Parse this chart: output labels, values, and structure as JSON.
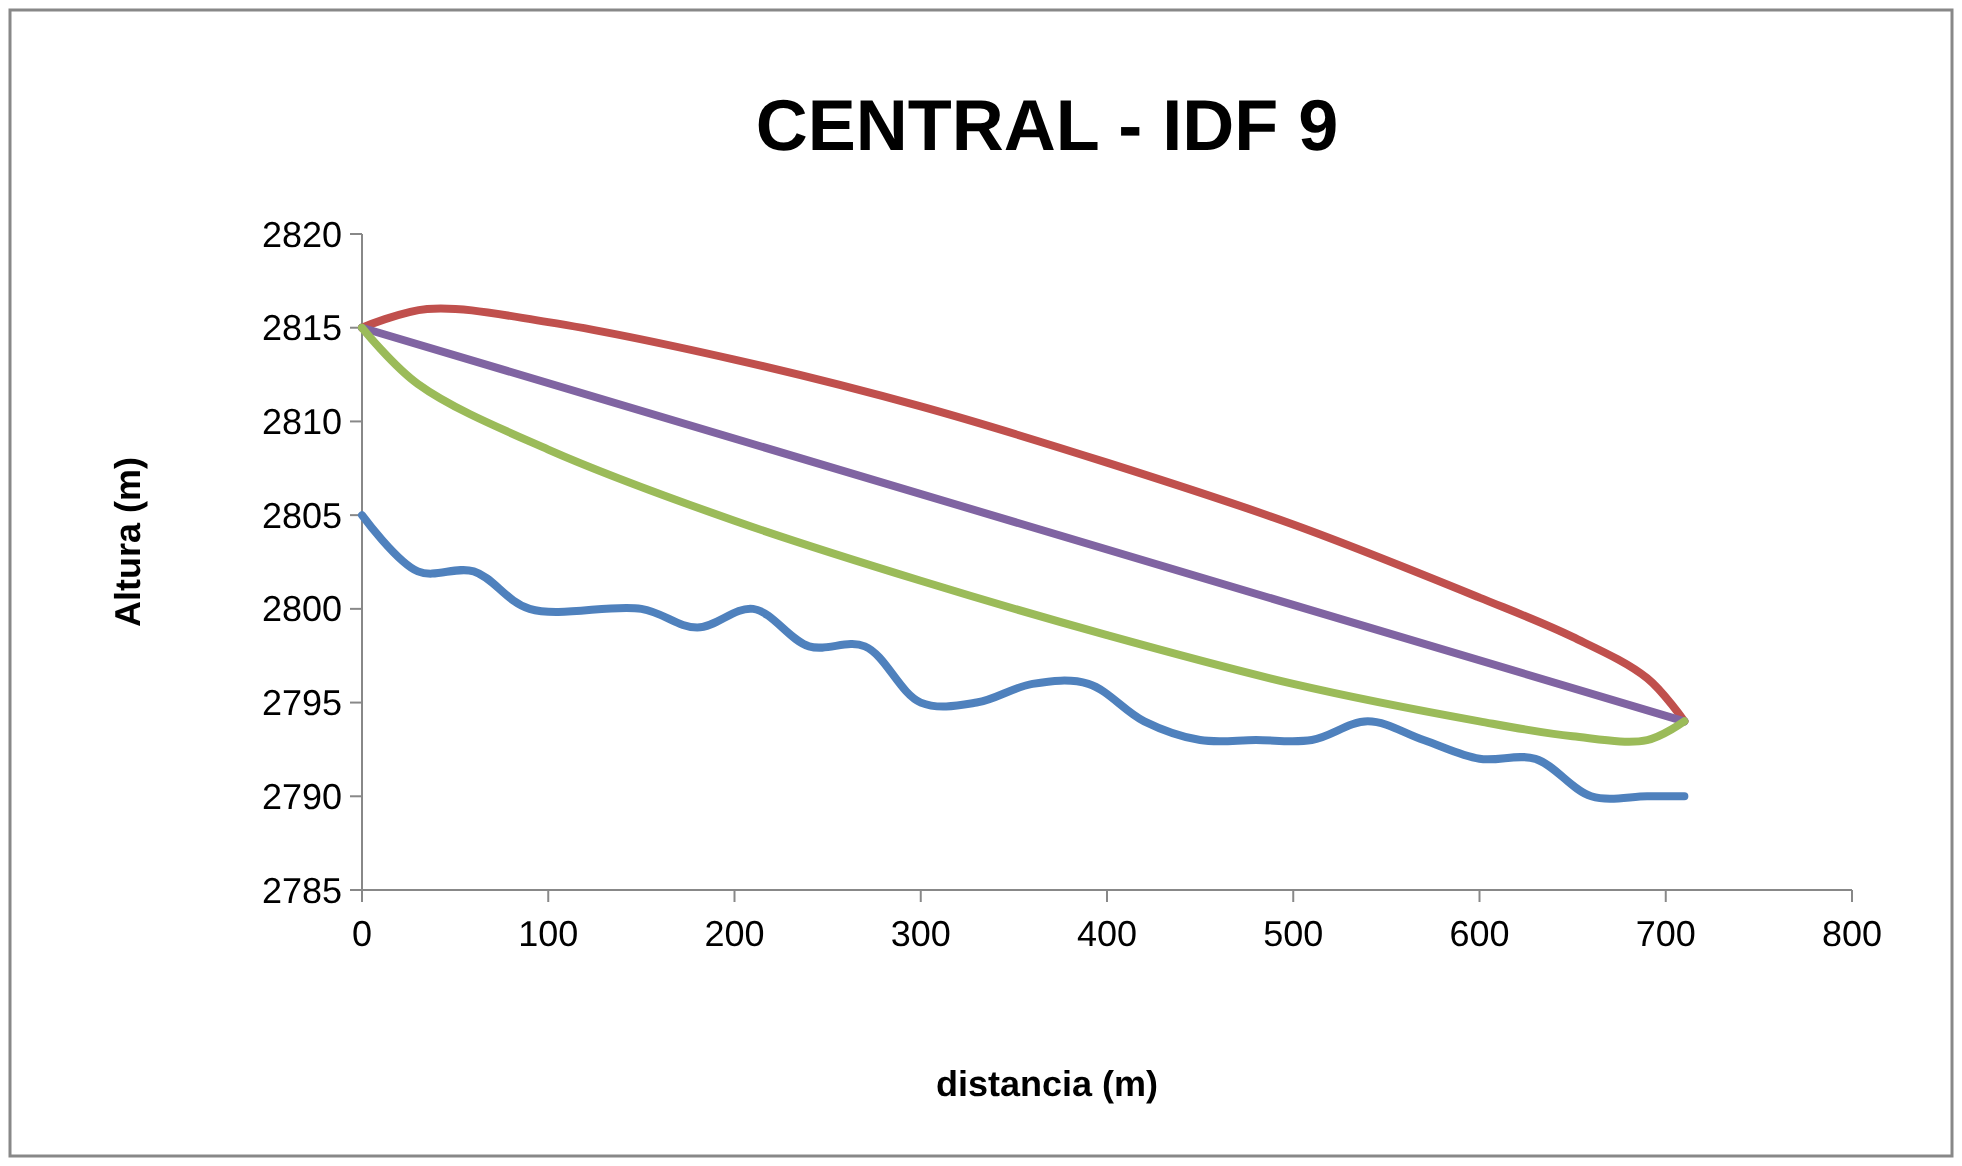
{
  "chart_data": {
    "type": "line",
    "title": "CENTRAL - IDF 9",
    "xlabel": "distancia (m)",
    "ylabel": "Altura (m)",
    "xlim": [
      0,
      800
    ],
    "xticks": [
      0,
      100,
      200,
      300,
      400,
      500,
      600,
      700,
      800
    ],
    "ylim": [
      2785,
      2820
    ],
    "yticks": [
      2785,
      2790,
      2795,
      2800,
      2805,
      2810,
      2815,
      2820
    ],
    "grid": false,
    "marker": "none",
    "line_style": "solid",
    "series": [
      {
        "color": "#4f81bd",
        "x": [
          0,
          30,
          60,
          90,
          150,
          180,
          210,
          240,
          270,
          300,
          330,
          360,
          390,
          420,
          450,
          480,
          510,
          540,
          570,
          600,
          630,
          660,
          690,
          710
        ],
        "values": [
          2805,
          2802,
          2802,
          2800,
          2800,
          2799,
          2800,
          2798,
          2798,
          2795,
          2795,
          2796,
          2796,
          2794,
          2793,
          2793,
          2793,
          2794,
          2793,
          2792,
          2792,
          2790,
          2790,
          2790
        ]
      },
      {
        "color": "#c0504d",
        "x": [
          0,
          35,
          100,
          200,
          300,
          400,
          500,
          600,
          650,
          690,
          710
        ],
        "values": [
          2815,
          2816,
          2815.3,
          2813.3,
          2810.8,
          2807.8,
          2804.5,
          2800.6,
          2798.5,
          2796.3,
          2794
        ]
      },
      {
        "color": "#8064a2",
        "x": [
          0,
          710
        ],
        "values": [
          2815,
          2794
        ]
      },
      {
        "color": "#9bbb59",
        "x": [
          0,
          30,
          100,
          200,
          300,
          400,
          500,
          600,
          650,
          690,
          710
        ],
        "values": [
          2815,
          2812,
          2808.5,
          2804.7,
          2801.5,
          2798.6,
          2796,
          2794,
          2793.2,
          2793,
          2794
        ]
      }
    ]
  }
}
